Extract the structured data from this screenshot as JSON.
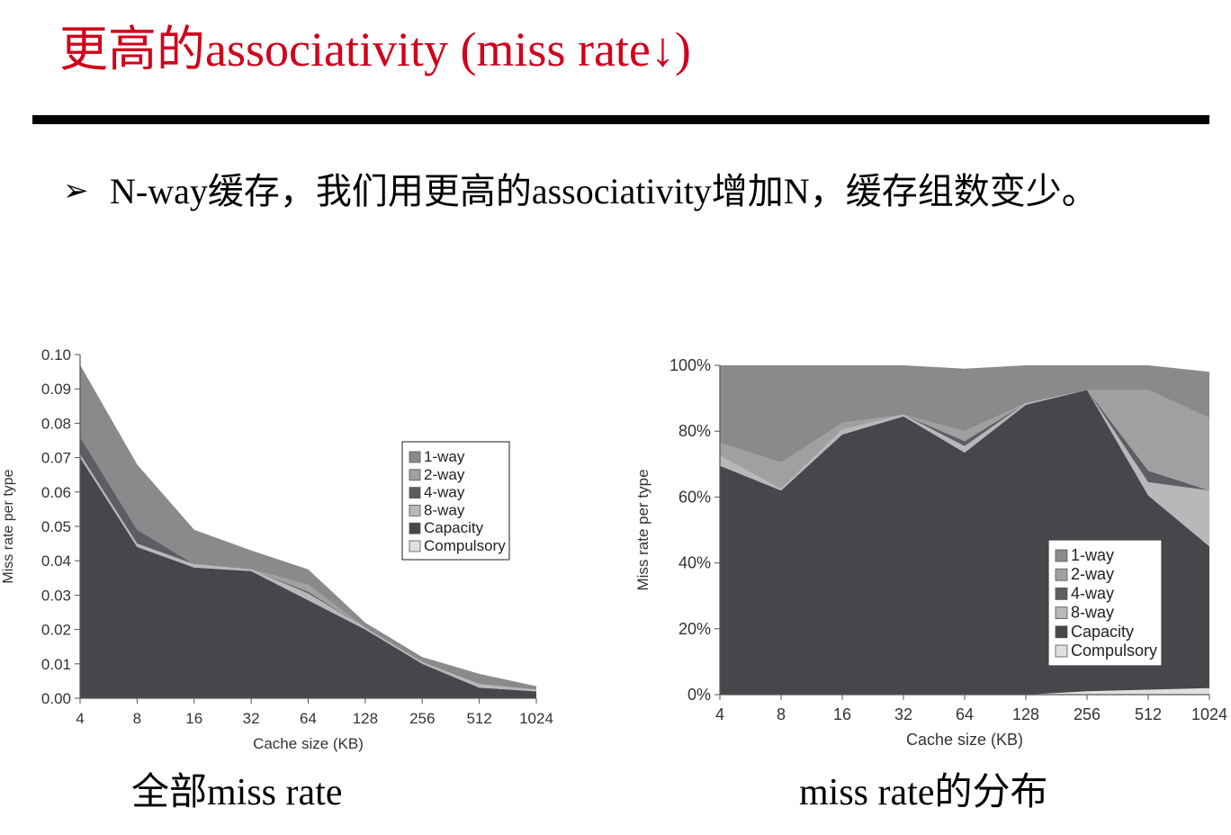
{
  "slide": {
    "title": "更高的associativity (miss rate↓)",
    "bullet_marker": "➢",
    "bullet_text": "N-way缓存，我们用更高的associativity增加N，缓存组数变少。",
    "caption_left": "全部miss rate",
    "caption_right": "miss rate的分布"
  },
  "colors": {
    "title": "#d0021b",
    "1-way": "#8a8a8d",
    "2-way": "#a0a0a3",
    "4-way": "#5e5e62",
    "8-way": "#b8b8bb",
    "Capacity": "#47474b",
    "Compulsory": "#e0e0e2"
  },
  "chart_data": [
    {
      "type": "area",
      "stacked": true,
      "categories": [
        "4",
        "8",
        "16",
        "32",
        "64",
        "128",
        "256",
        "512",
        "1024"
      ],
      "xlabel": "Cache size (KB)",
      "ylabel": "Miss rate per type",
      "ylim": [
        0,
        0.1
      ],
      "yticks": [
        "0.00",
        "0.01",
        "0.02",
        "0.03",
        "0.04",
        "0.05",
        "0.06",
        "0.07",
        "0.08",
        "0.09",
        "0.10"
      ],
      "legend_position": "right",
      "legend": [
        "1-way",
        "2-way",
        "4-way",
        "8-way",
        "Capacity",
        "Compulsory"
      ],
      "series": [
        {
          "name": "Compulsory",
          "values": [
            0.0001,
            0.0001,
            0.0001,
            0.0001,
            0.0001,
            0.0001,
            0.0001,
            0.0001,
            0.0001
          ]
        },
        {
          "name": "Capacity",
          "values": [
            0.0699,
            0.0439,
            0.0379,
            0.0369,
            0.0284,
            0.0199,
            0.0099,
            0.003,
            0.0019
          ]
        },
        {
          "name": "8-way",
          "values": [
            0.001,
            0.001,
            0.001,
            0.0005,
            0.002,
            0.0005,
            0.0005,
            0.001,
            0.0005
          ]
        },
        {
          "name": "4-way",
          "values": [
            0.005,
            0.004,
            0.0,
            0.0,
            0.0005,
            0.0,
            0.0,
            0.0,
            0.0
          ]
        },
        {
          "name": "2-way",
          "values": [
            0.0,
            0.0,
            0.0,
            0.0,
            0.002,
            0.0,
            0.0,
            0.0,
            0.0
          ]
        },
        {
          "name": "1-way",
          "values": [
            0.021,
            0.019,
            0.01,
            0.0055,
            0.0045,
            0.0015,
            0.0015,
            0.003,
            0.001
          ]
        }
      ]
    },
    {
      "type": "area",
      "stacked": true,
      "categories": [
        "4",
        "8",
        "16",
        "32",
        "64",
        "128",
        "256",
        "512",
        "1024"
      ],
      "xlabel": "Cache size (KB)",
      "ylabel": "Miss rate per type",
      "ylim": [
        0,
        100
      ],
      "yticks": [
        "0%",
        "20%",
        "40%",
        "60%",
        "80%",
        "100%"
      ],
      "legend_position": "bottom-right",
      "legend": [
        "1-way",
        "2-way",
        "4-way",
        "8-way",
        "Capacity",
        "Compulsory"
      ],
      "series": [
        {
          "name": "Compulsory",
          "values": [
            0.0,
            0.0,
            0.0,
            0.0,
            0.0,
            0.0,
            1.0,
            1.5,
            2.0
          ]
        },
        {
          "name": "Capacity",
          "values": [
            69.5,
            62.0,
            79.0,
            84.5,
            73.5,
            88.0,
            91.5,
            59.0,
            43.0
          ]
        },
        {
          "name": "8-way",
          "values": [
            3.0,
            0.5,
            1.5,
            0.5,
            2.0,
            0.5,
            0.0,
            4.0,
            17.0
          ]
        },
        {
          "name": "4-way",
          "values": [
            0.0,
            0.0,
            0.0,
            0.0,
            1.5,
            0.0,
            0.0,
            3.5,
            0.0
          ]
        },
        {
          "name": "2-way",
          "values": [
            4.0,
            8.0,
            2.0,
            0.0,
            3.0,
            0.0,
            0.0,
            24.5,
            22.0
          ]
        },
        {
          "name": "1-way",
          "values": [
            23.5,
            29.5,
            17.5,
            15.0,
            19.0,
            11.5,
            7.5,
            7.5,
            14.0
          ]
        }
      ]
    }
  ]
}
